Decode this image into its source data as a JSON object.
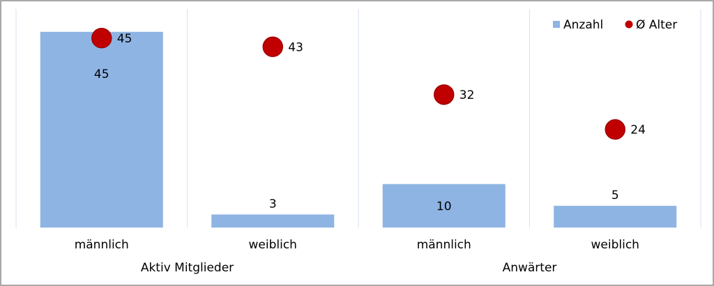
{
  "chart_data": {
    "type": "bar",
    "title": "",
    "xlabel": "",
    "ylabel": "",
    "ylim": [
      0,
      48
    ],
    "grid": false,
    "legend_position": "top-right",
    "groups": [
      {
        "label": "Aktiv Mitglieder",
        "categories": [
          "männlich",
          "weiblich"
        ]
      },
      {
        "label": "Anwärter",
        "categories": [
          "männlich",
          "weiblich"
        ]
      }
    ],
    "categories": [
      "männlich",
      "weiblich",
      "männlich",
      "weiblich"
    ],
    "series": [
      {
        "name": "Anzahl",
        "type": "bar",
        "color": "#8eb4e3",
        "values": [
          45,
          3,
          10,
          5
        ]
      },
      {
        "name": "Ø Alter",
        "type": "scatter",
        "color": "#c00000",
        "values": [
          45,
          43,
          32,
          24
        ]
      }
    ]
  }
}
